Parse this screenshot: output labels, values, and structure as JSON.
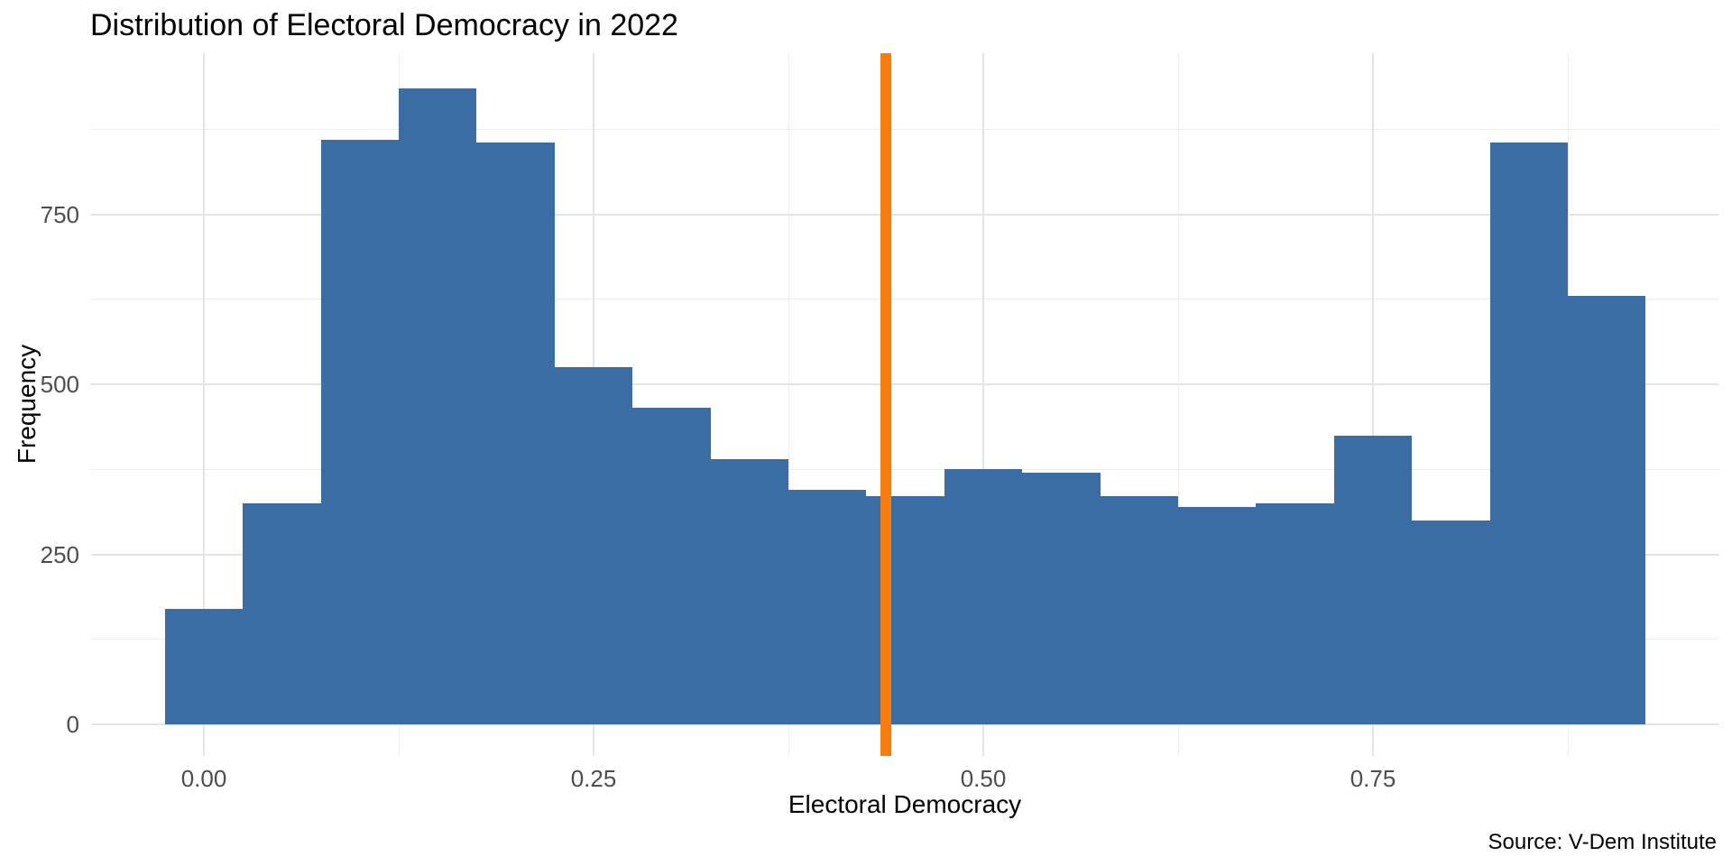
{
  "title": "Distribution of Electoral Democracy in 2022",
  "source_note": "Source: V-Dem Institute",
  "chart_data": {
    "type": "bar",
    "subtype": "histogram",
    "title": "Distribution of Electoral Democracy in 2022",
    "xlabel": "Electoral Democracy",
    "ylabel": "Frequency",
    "bin_width": 0.05,
    "bin_centers": [
      0.0,
      0.05,
      0.1,
      0.15,
      0.2,
      0.25,
      0.3,
      0.35,
      0.4,
      0.45,
      0.5,
      0.55,
      0.6,
      0.65,
      0.7,
      0.75,
      0.8,
      0.85,
      0.9
    ],
    "frequencies": [
      170,
      325,
      860,
      935,
      855,
      525,
      465,
      390,
      345,
      335,
      375,
      370,
      335,
      320,
      325,
      425,
      300,
      855,
      630
    ],
    "x_ticks": [
      "0.00",
      "0.25",
      "0.50",
      "0.75"
    ],
    "x_tick_values": [
      0.0,
      0.25,
      0.5,
      0.75
    ],
    "x_minor_values": [
      0.125,
      0.375,
      0.625,
      0.875
    ],
    "y_ticks": [
      "0",
      "250",
      "500",
      "750"
    ],
    "y_tick_values": [
      0,
      250,
      500,
      750
    ],
    "y_minor_values": [
      125,
      375,
      625,
      875
    ],
    "xlim": [
      -0.0725,
      0.9725
    ],
    "ylim": [
      -47,
      987
    ],
    "grid": true,
    "legend": false,
    "bar_color": "#3A6DA4",
    "reference_line": {
      "x": 0.4375,
      "color": "#F97D0E"
    },
    "annotation": "Source: V-Dem Institute"
  }
}
